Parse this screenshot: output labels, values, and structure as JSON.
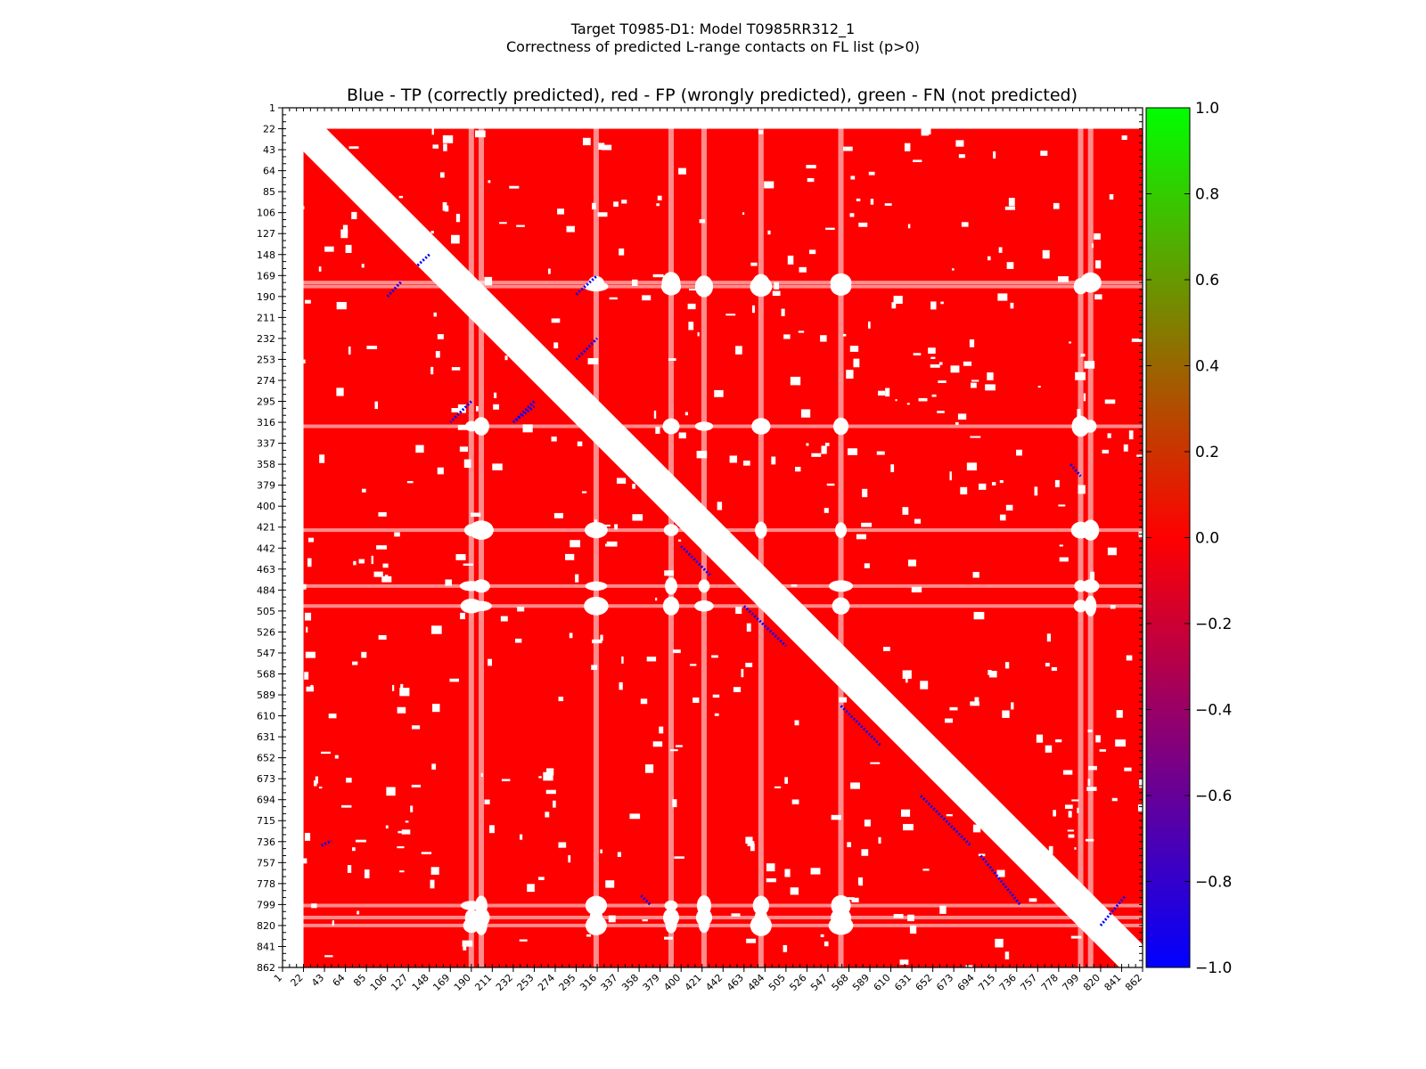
{
  "figure": {
    "suptitle_line1": "Target T0985-D1: Model T0985RR312_1",
    "suptitle_line2": "Correctness of predicted L-range contacts on FL list (p>0)"
  },
  "chart_data": {
    "type": "heatmap",
    "title": "Blue - TP (correctly predicted), red - FP (wrongly predicted), green - FN (not predicted)",
    "xlabel": "",
    "ylabel": "",
    "axis_range": [
      1,
      862
    ],
    "y_inverted": true,
    "ticks": [
      1,
      22,
      43,
      64,
      85,
      106,
      127,
      148,
      169,
      190,
      211,
      232,
      253,
      274,
      295,
      316,
      337,
      358,
      379,
      400,
      421,
      442,
      463,
      484,
      505,
      526,
      547,
      568,
      589,
      610,
      631,
      652,
      673,
      694,
      715,
      736,
      757,
      778,
      799,
      820,
      841,
      862
    ],
    "value_colors": {
      "tp": {
        "value": -1.0,
        "color": "#0000ff"
      },
      "fp": {
        "value": 0.0,
        "color": "#ff0000"
      },
      "fn": {
        "value": 1.0,
        "color": "#00ff00"
      },
      "no_prediction": "#ffffff"
    },
    "excluded_diagonal_band_residues": 23,
    "colorbar": {
      "range": [
        -1.0,
        1.0
      ],
      "ticks": [
        "1.0",
        "0.8",
        "0.6",
        "0.4",
        "0.2",
        "0.0",
        "−0.2",
        "−0.4",
        "−0.6",
        "−0.8",
        "−1.0"
      ],
      "colors": [
        "#00ff00",
        "#ff0000",
        "#0000ff"
      ]
    },
    "tp_segments": [
      [
        [
          295,
          188
        ],
        [
          316,
          169
        ]
      ],
      [
        [
          295,
          253
        ],
        [
          316,
          232
        ]
      ],
      [
        [
          190,
          295
        ],
        [
          169,
          316
        ]
      ],
      [
        [
          253,
          295
        ],
        [
          232,
          316
        ]
      ],
      [
        [
          106,
          190
        ],
        [
          120,
          175
        ]
      ],
      [
        [
          232,
          316
        ],
        [
          253,
          300
        ]
      ],
      [
        [
          148,
          148
        ],
        [
          135,
          160
        ]
      ],
      [
        [
          400,
          440
        ],
        [
          430,
          470
        ]
      ],
      [
        [
          463,
          500
        ],
        [
          505,
          540
        ]
      ],
      [
        [
          560,
          600
        ],
        [
          600,
          640
        ]
      ],
      [
        [
          640,
          690
        ],
        [
          690,
          740
        ]
      ],
      [
        [
          700,
          750
        ],
        [
          740,
          800
        ]
      ],
      [
        [
          790,
          358
        ],
        [
          800,
          370
        ]
      ],
      [
        [
          360,
          790
        ],
        [
          370,
          800
        ]
      ],
      [
        [
          820,
          820
        ],
        [
          845,
          790
        ]
      ],
      [
        [
          40,
          740
        ],
        [
          50,
          735
        ]
      ]
    ],
    "white_strips_x": [
      190,
      200,
      315,
      390,
      423,
      480,
      560,
      800,
      810
    ],
    "white_strips_y": [
      176,
      180,
      320,
      424,
      480,
      500,
      800,
      812,
      820
    ]
  }
}
